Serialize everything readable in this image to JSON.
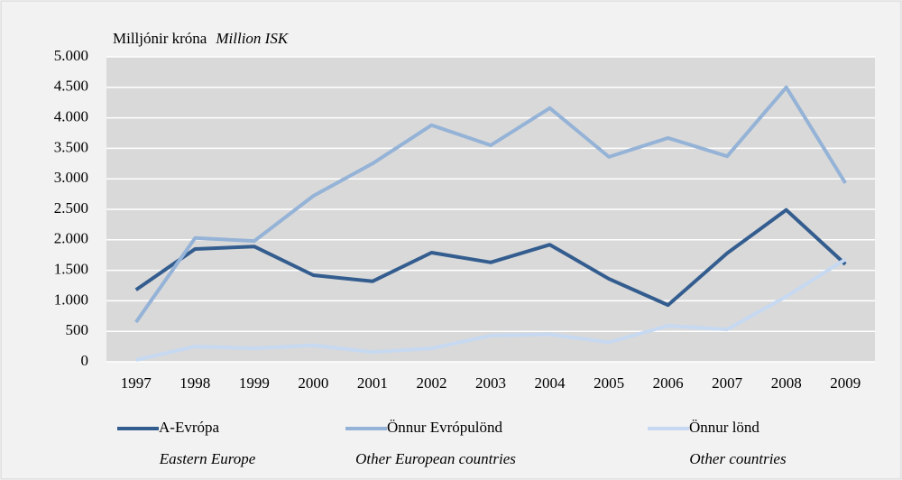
{
  "chart_data": {
    "type": "line",
    "title": "Milljónir króna",
    "subtitle": "Million ISK",
    "categories": [
      "1997",
      "1998",
      "1999",
      "2000",
      "2001",
      "2002",
      "2003",
      "2004",
      "2005",
      "2006",
      "2007",
      "2008",
      "2009"
    ],
    "series": [
      {
        "name": "A-Evrópa",
        "name_en": "Eastern Europe",
        "color": "#345d8f",
        "values": [
          1180,
          1850,
          1890,
          1420,
          1320,
          1790,
          1630,
          1920,
          1360,
          930,
          1780,
          2490,
          1600
        ]
      },
      {
        "name": "Önnur Evrópulönd",
        "name_en": "Other European countries",
        "color": "#95b3d7",
        "values": [
          650,
          2030,
          1980,
          2720,
          3250,
          3880,
          3550,
          4160,
          3360,
          3670,
          3370,
          4500,
          2930
        ]
      },
      {
        "name": "Önnur lönd",
        "name_en": "Other countries",
        "color": "#c6d9f1",
        "values": [
          30,
          250,
          220,
          270,
          160,
          220,
          430,
          450,
          320,
          590,
          530,
          1070,
          1680
        ]
      }
    ],
    "ylim": [
      0,
      5000
    ],
    "yticks": [
      0,
      500,
      {
        "value": 1000,
        "label": "1.000"
      },
      {
        "value": 1500,
        "label": "1.500"
      },
      {
        "value": 2000,
        "label": "2.000"
      },
      {
        "value": 2500,
        "label": "2.500"
      },
      {
        "value": 3000,
        "label": "3.000"
      },
      {
        "value": 3500,
        "label": "3.500"
      },
      {
        "value": 4000,
        "label": "4.000"
      },
      {
        "value": 4500,
        "label": "4.500"
      },
      {
        "value": 5000,
        "label": "5.000"
      }
    ],
    "grid": true
  }
}
